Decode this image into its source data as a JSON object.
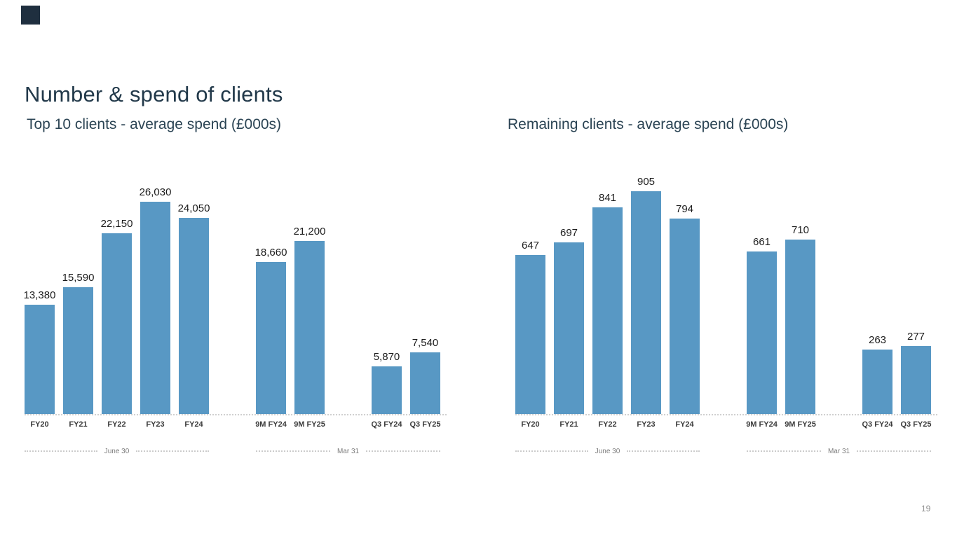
{
  "slide": {
    "title": "Number & spend of clients",
    "page_number": "19"
  },
  "colors": {
    "bar": "#5898C4",
    "title_text": "#22394A",
    "logo": "#1F2F3F",
    "axis_dots": "#D0D0D0",
    "footer_text": "#7C7C7C"
  },
  "chart_data": [
    {
      "type": "bar",
      "title": "Top 10 clients - average spend (£000s)",
      "categories": [
        "FY20",
        "FY21",
        "FY22",
        "FY23",
        "FY24",
        "9M FY24",
        "9M FY25",
        "Q3 FY24",
        "Q3 FY25"
      ],
      "values": [
        13380,
        15590,
        22150,
        26030,
        24050,
        18660,
        21200,
        5870,
        7540
      ],
      "value_labels": [
        "13,380",
        "15,590",
        "22,150",
        "26,030",
        "24,050",
        "18,660",
        "21,200",
        "5,870",
        "7,540"
      ],
      "groups": [
        [
          0,
          1,
          2,
          3,
          4
        ],
        [
          5,
          6
        ],
        [
          7,
          8
        ]
      ],
      "group_annotations": [
        "June 30",
        "Mar 31"
      ],
      "xlabel": "",
      "ylabel": "",
      "ylim": [
        0,
        30150
      ],
      "grid": false,
      "legend": false,
      "bar_color": "#5898C4"
    },
    {
      "type": "bar",
      "title": "Remaining clients - average spend (£000s)",
      "categories": [
        "FY20",
        "FY21",
        "FY22",
        "FY23",
        "FY24",
        "9M FY24",
        "9M FY25",
        "Q3 FY24",
        "Q3 FY25"
      ],
      "values": [
        647,
        697,
        841,
        905,
        794,
        661,
        710,
        263,
        277
      ],
      "value_labels": [
        "647",
        "697",
        "841",
        "905",
        "794",
        "661",
        "710",
        "263",
        "277"
      ],
      "groups": [
        [
          0,
          1,
          2,
          3,
          4
        ],
        [
          5,
          6
        ],
        [
          7,
          8
        ]
      ],
      "group_annotations": [
        "June 30",
        "Mar 31"
      ],
      "xlabel": "",
      "ylabel": "",
      "ylim": [
        0,
        1000
      ],
      "grid": false,
      "legend": false,
      "bar_color": "#5898C4"
    }
  ]
}
